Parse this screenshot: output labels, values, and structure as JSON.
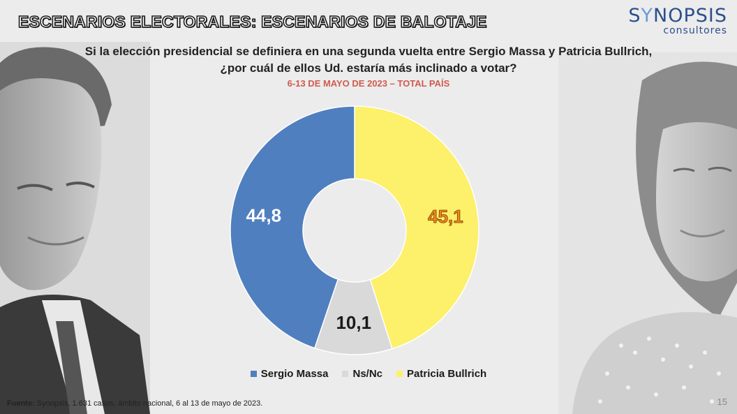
{
  "header": {
    "title": "ESCENARIOS ELECTORALES: ESCENARIOS DE BALOTAJE",
    "question_line1": "Si la elección presidencial se definiera en una segunda vuelta entre Sergio Massa y Patricia Bullrich,",
    "question_line2": "¿por cuál de ellos Ud. estaría más inclinado a votar?",
    "subtitle": "6-13 DE MAYO DE 2023 – TOTAL PAÍS"
  },
  "logo": {
    "name_part1": "S",
    "name_part2": "Y",
    "name_part3": "NOPSIS",
    "subtitle": "consultores"
  },
  "chart_data": {
    "type": "pie",
    "donut": true,
    "categories": [
      "Sergio Massa",
      "Ns/Nc",
      "Patricia Bullrich"
    ],
    "values": [
      44.8,
      10.1,
      45.1
    ],
    "labels": [
      "44,8",
      "10,1",
      "45,1"
    ],
    "colors": [
      "#4f7fbf",
      "#d9d9d9",
      "#fdf06a"
    ],
    "label_colors": [
      "#ffffff",
      "#1a1a1a",
      "#f08a1c"
    ],
    "legend_position": "bottom"
  },
  "footer": {
    "source_label": "Fuente:",
    "source_text": " Synopsis, 1.631 casos, ámbito nacional, 6 al 13 de mayo de 2023.",
    "page_number": "15"
  }
}
